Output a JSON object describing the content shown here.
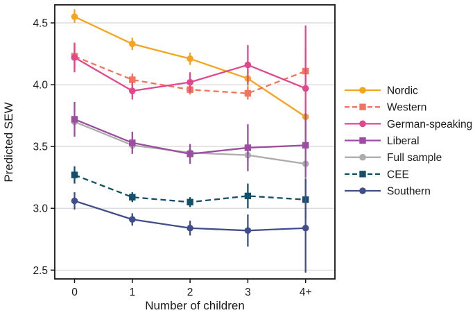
{
  "figure": {
    "background": "#ffffff",
    "grid_color": "#d8d8d8",
    "border_color": "#141414",
    "text_color": "#1a1a1a"
  },
  "chart_data": {
    "type": "line",
    "title": "",
    "xlabel": "Number of children",
    "ylabel": "Predicted SEW",
    "categories": [
      "0",
      "1",
      "2",
      "3",
      "4+"
    ],
    "yticks": [
      4.5,
      4.0,
      3.5,
      3.0,
      2.5
    ],
    "ytick_labels": [
      "4.5",
      "4.0",
      "3.5",
      "3.0",
      "2.5"
    ],
    "ylim": [
      2.4,
      4.65
    ],
    "grid": "horizontal",
    "legend_position": "right",
    "error_bars": true,
    "series": [
      {
        "name": "Nordic",
        "color": "#F5A51D",
        "dash": "solid",
        "marker": "circle",
        "values": [
          4.55,
          4.33,
          4.21,
          4.05,
          3.74
        ],
        "ci_low": [
          4.5,
          4.28,
          4.16,
          3.97,
          3.6
        ],
        "ci_high": [
          4.61,
          4.38,
          4.26,
          4.13,
          3.88
        ]
      },
      {
        "name": "Western",
        "color": "#F4735C",
        "dash": "dashed",
        "marker": "square",
        "values": [
          4.23,
          4.04,
          3.96,
          3.93,
          4.11
        ],
        "ci_low": [
          4.13,
          3.99,
          3.92,
          3.88,
          3.93
        ],
        "ci_high": [
          4.33,
          4.09,
          4.0,
          3.98,
          4.29
        ]
      },
      {
        "name": "German-speaking",
        "color": "#E2478D",
        "dash": "solid",
        "marker": "circle",
        "values": [
          4.22,
          3.95,
          4.02,
          4.16,
          3.97
        ],
        "ci_low": [
          4.1,
          3.88,
          3.94,
          4.0,
          3.47
        ],
        "ci_high": [
          4.34,
          4.02,
          4.1,
          4.32,
          4.48
        ]
      },
      {
        "name": "Liberal",
        "color": "#9C4D9F",
        "dash": "solid",
        "marker": "square",
        "values": [
          3.72,
          3.53,
          3.44,
          3.49,
          3.51
        ],
        "ci_low": [
          3.58,
          3.44,
          3.36,
          3.3,
          3.25
        ],
        "ci_high": [
          3.86,
          3.62,
          3.52,
          3.68,
          3.77
        ]
      },
      {
        "name": "Full sample",
        "color": "#ACACAC",
        "dash": "solid",
        "marker": "circle",
        "values": [
          3.7,
          3.51,
          3.45,
          3.43,
          3.36
        ],
        "ci_low": [
          3.66,
          3.48,
          3.42,
          3.39,
          3.21
        ],
        "ci_high": [
          3.74,
          3.54,
          3.48,
          3.47,
          3.49
        ]
      },
      {
        "name": "CEE",
        "color": "#134F6B",
        "dash": "dashed",
        "marker": "square",
        "values": [
          3.27,
          3.09,
          3.05,
          3.1,
          3.07
        ],
        "ci_low": [
          3.2,
          3.05,
          3.01,
          3.0,
          2.92
        ],
        "ci_high": [
          3.34,
          3.13,
          3.09,
          3.2,
          3.22
        ]
      },
      {
        "name": "Southern",
        "color": "#3F4D8B",
        "dash": "solid",
        "marker": "circle",
        "values": [
          3.06,
          2.91,
          2.84,
          2.82,
          2.84
        ],
        "ci_low": [
          2.99,
          2.86,
          2.78,
          2.69,
          2.48
        ],
        "ci_high": [
          3.13,
          2.96,
          2.9,
          2.95,
          3.24
        ]
      }
    ]
  }
}
